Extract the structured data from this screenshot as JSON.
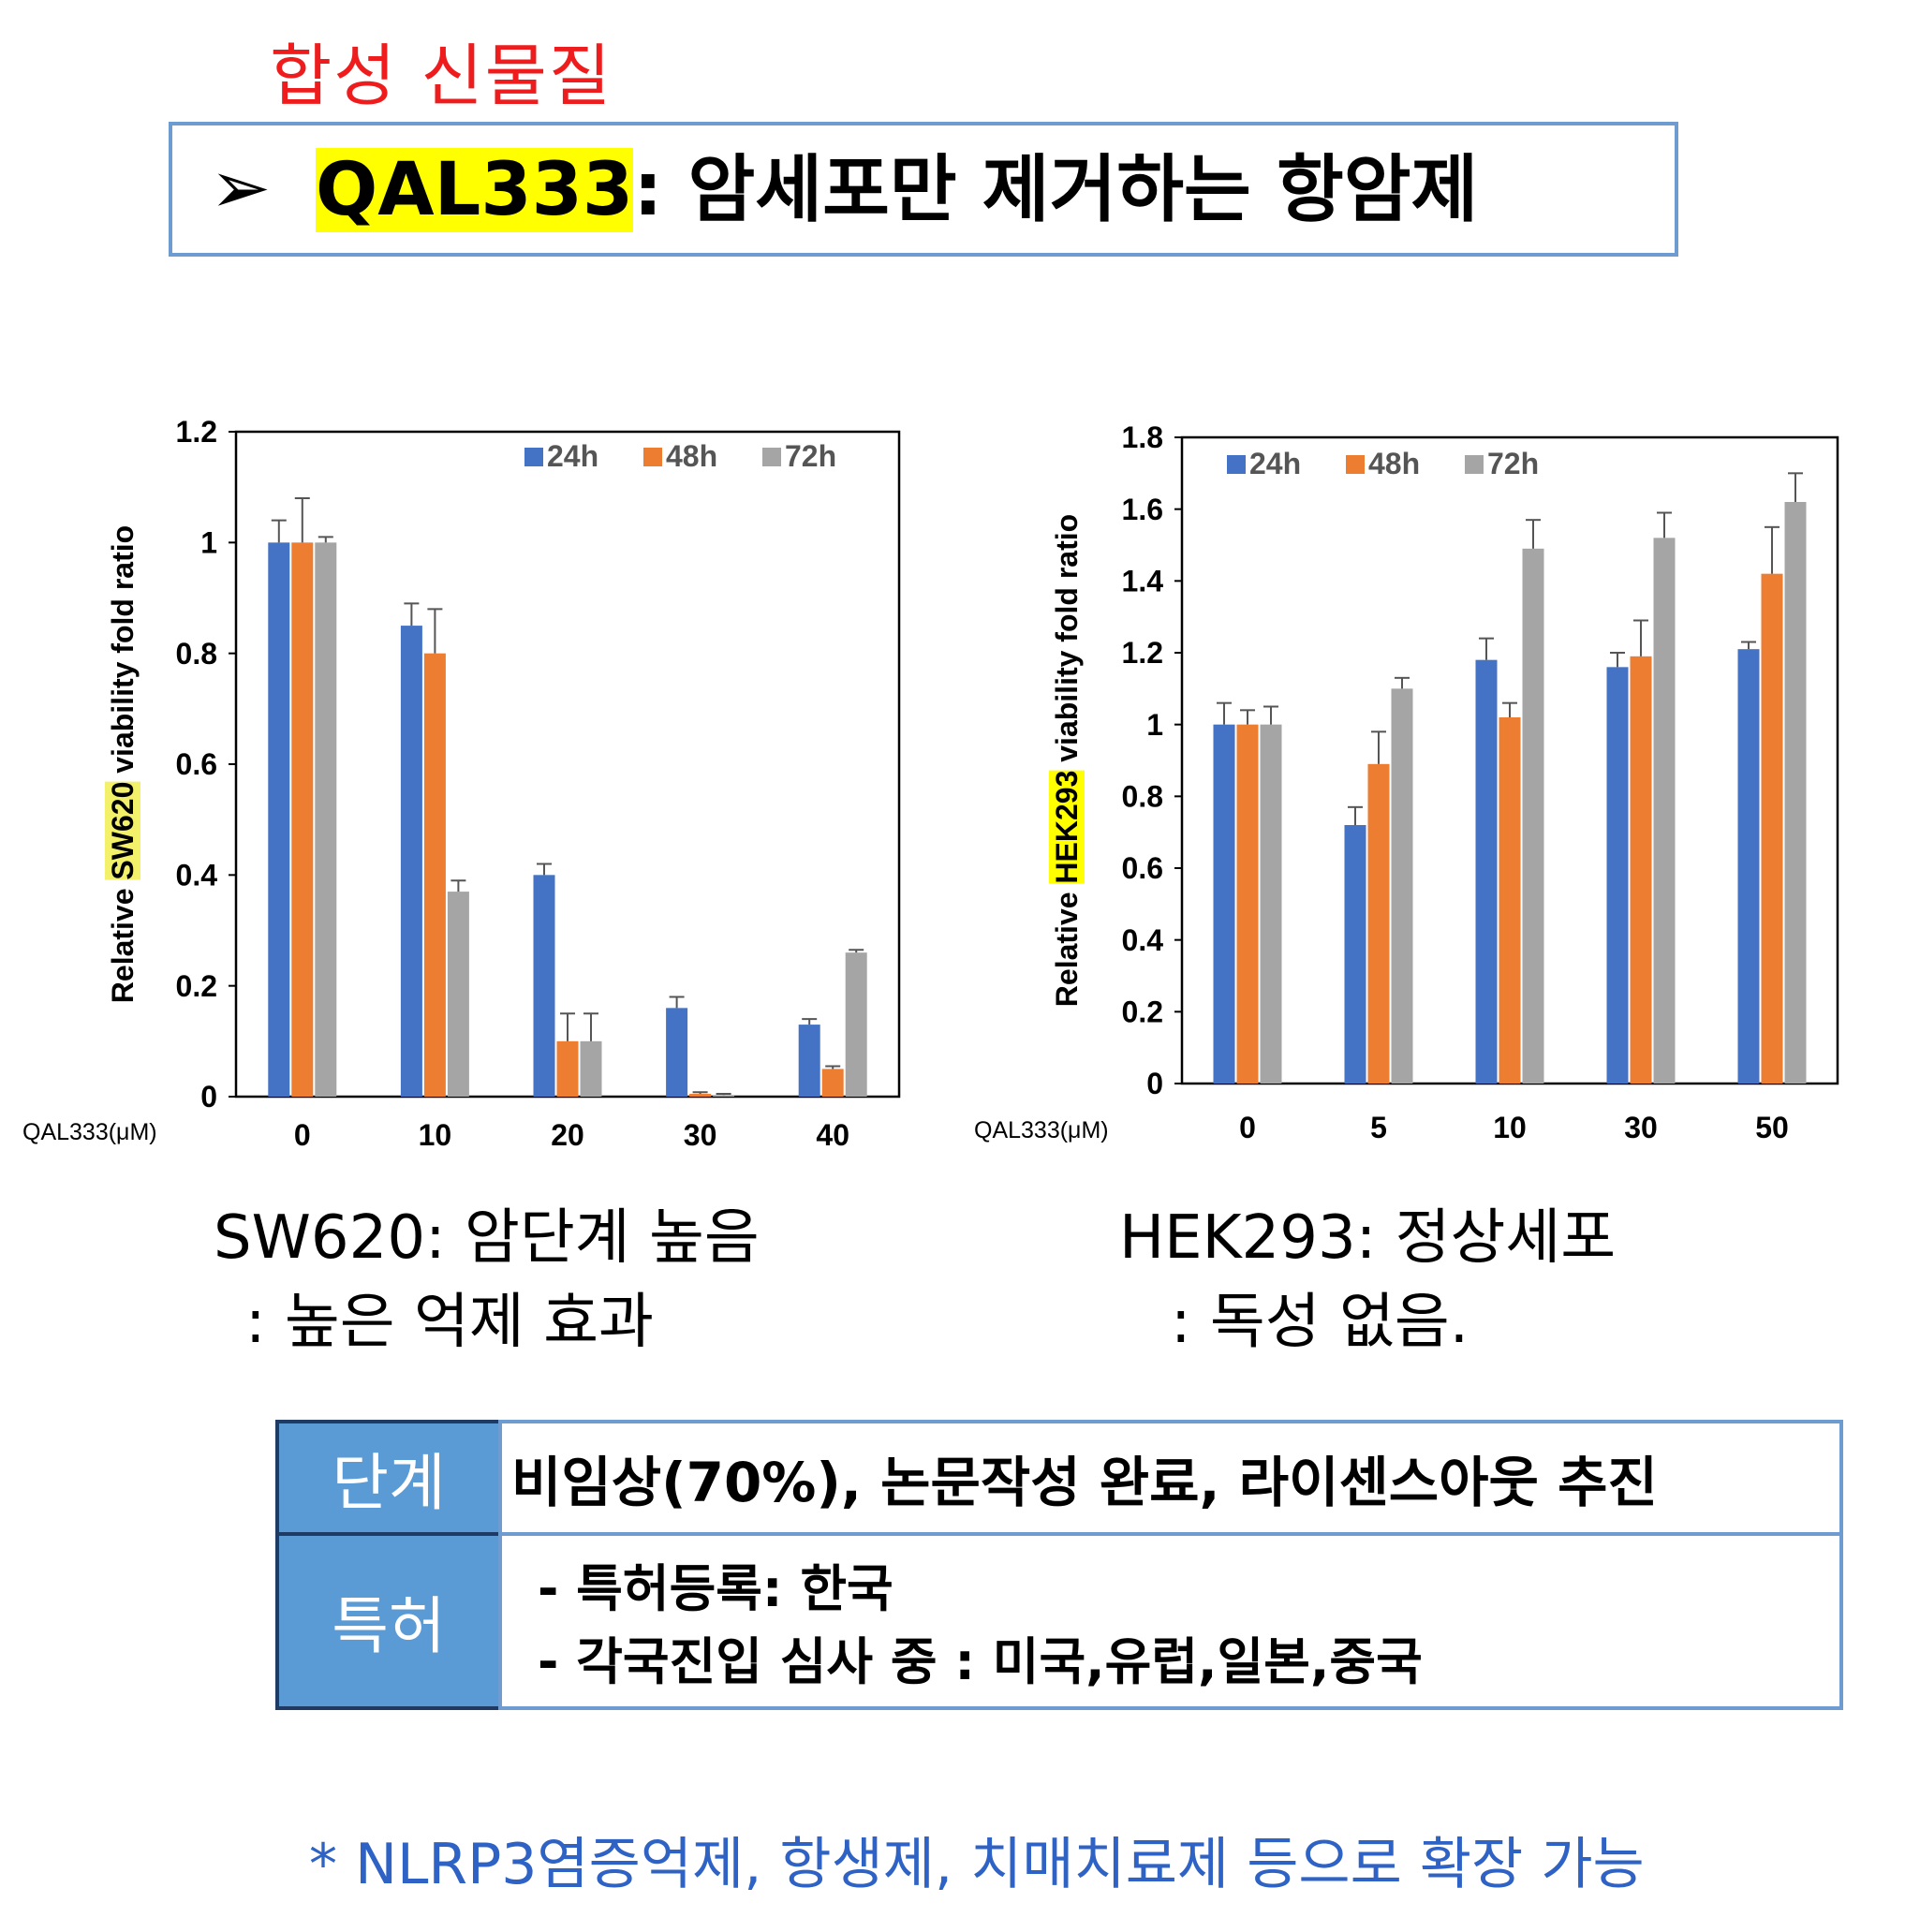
{
  "header": {
    "category": "합성 신물질",
    "arrow": "➢",
    "compound": "QAL333",
    "title_rest": ": 암세포만 제거하는 항암제"
  },
  "chart_data": [
    {
      "type": "bar",
      "title": "",
      "ylabel_prefix": "Relative ",
      "ylabel_cell": "SW620",
      "ylabel_suffix": " viability fold ratio",
      "xlabel": "QAL333(μM)",
      "categories": [
        "0",
        "10",
        "20",
        "30",
        "40"
      ],
      "ylim": [
        0,
        1.2
      ],
      "yticks": [
        0,
        0.2,
        0.4,
        0.6,
        0.8,
        1,
        1.2
      ],
      "ytick_labels": [
        "0",
        "0.2",
        "0.4",
        "0.6",
        "0.8",
        "1",
        "1.2"
      ],
      "legend_position": "top-right",
      "grid": false,
      "series": [
        {
          "name": "24h",
          "color": "#4472c4",
          "values": [
            1.0,
            0.85,
            0.4,
            0.16,
            0.13
          ],
          "errors": [
            0.04,
            0.04,
            0.02,
            0.02,
            0.01
          ]
        },
        {
          "name": "48h",
          "color": "#ed7d31",
          "values": [
            1.0,
            0.8,
            0.1,
            0.005,
            0.05
          ],
          "errors": [
            0.08,
            0.08,
            0.05,
            0.003,
            0.005
          ]
        },
        {
          "name": "72h",
          "color": "#a5a5a5",
          "values": [
            1.0,
            0.37,
            0.1,
            0.003,
            0.26
          ],
          "errors": [
            0.01,
            0.02,
            0.05,
            0.002,
            0.005
          ]
        }
      ]
    },
    {
      "type": "bar",
      "title": "",
      "ylabel_prefix": "Relative ",
      "ylabel_cell": "HEK293",
      "ylabel_suffix": " viability fold ratio",
      "xlabel": "QAL333(μM)",
      "categories": [
        "0",
        "5",
        "10",
        "30",
        "50"
      ],
      "ylim": [
        0,
        1.8
      ],
      "yticks": [
        0,
        0.2,
        0.4,
        0.6,
        0.8,
        1,
        1.2,
        1.4,
        1.6,
        1.8
      ],
      "ytick_labels": [
        "0",
        "0.2",
        "0.4",
        "0.6",
        "0.8",
        "1",
        "1.2",
        "1.4",
        "1.6",
        "1.8"
      ],
      "legend_position": "top-left",
      "grid": false,
      "series": [
        {
          "name": "24h",
          "color": "#4472c4",
          "values": [
            1.0,
            0.72,
            1.18,
            1.16,
            1.21
          ],
          "errors": [
            0.06,
            0.05,
            0.06,
            0.04,
            0.02
          ]
        },
        {
          "name": "48h",
          "color": "#ed7d31",
          "values": [
            1.0,
            0.89,
            1.02,
            1.19,
            1.42
          ],
          "errors": [
            0.04,
            0.09,
            0.04,
            0.1,
            0.13
          ]
        },
        {
          "name": "72h",
          "color": "#a5a5a5",
          "values": [
            1.0,
            1.1,
            1.49,
            1.52,
            1.62
          ],
          "errors": [
            0.05,
            0.03,
            0.08,
            0.07,
            0.08
          ]
        }
      ]
    }
  ],
  "captions": {
    "left_line1": "SW620: 암단계 높음",
    "left_line2": ": 높은 억제 효과",
    "right_line1": "HEK293: 정상세포",
    "right_line2": ": 독성 없음."
  },
  "table": {
    "stage_label": "단계",
    "stage_value": "비임상(70%), 논문작성 완료, 라이센스아웃 추진",
    "patent_label": "특허",
    "patent_line1": "- 특허등록: 한국",
    "patent_line2": "- 각국진입 심사 중 : 미국,유럽,일본,중국"
  },
  "footnote": "* NLRP3염증억제, 항생제, 치매치료제 등으로 확장 가능",
  "colors": {
    "category": "#ee1c1c",
    "highlight": "#ffff00",
    "table_header": "#5b9bd5",
    "footnote": "#2e62c4"
  }
}
